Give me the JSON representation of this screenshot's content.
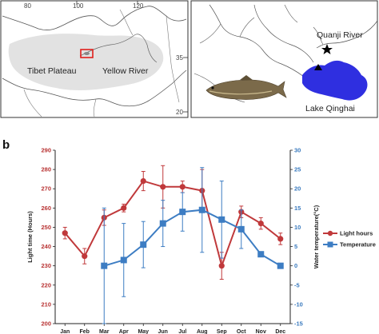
{
  "panels": {
    "a_label": "a",
    "b_label": "b"
  },
  "map_left": {
    "coords": [
      "80",
      "100",
      "120",
      "35",
      "20"
    ],
    "labels": {
      "tibet": "Tibet Plateau",
      "yellow_river": "Yellow River"
    }
  },
  "map_right": {
    "labels": {
      "quanji": "Quanji River",
      "lake": "Lake Qinghai"
    }
  },
  "colors": {
    "light": "#c0393b",
    "temperature": "#3d7dc3",
    "lake": "#2f2fe0"
  },
  "chart_data": {
    "type": "line",
    "categories": [
      "Jan",
      "Feb",
      "Mar",
      "Apr",
      "May",
      "Jun",
      "Jul",
      "Aug",
      "Sep",
      "Oct",
      "Nov",
      "Dec"
    ],
    "xlabel": "",
    "ylabel_left": "Light time (Hours)",
    "ylabel_right": "Water temperature(°C)",
    "ylim_left": [
      200,
      290
    ],
    "ylim_right": [
      -15,
      30
    ],
    "yticks_left": [
      200,
      210,
      220,
      230,
      240,
      250,
      260,
      270,
      280,
      290
    ],
    "yticks_right": [
      -15,
      -10,
      -5,
      0,
      5,
      10,
      15,
      20,
      25,
      30
    ],
    "legend_position": "right",
    "series": [
      {
        "name": "Light hours",
        "axis": "left",
        "marker": "circle",
        "values": [
          247,
          235,
          255,
          260,
          274,
          271,
          271,
          269,
          230,
          258,
          252,
          244
        ],
        "errors": [
          3,
          4,
          4,
          2,
          5,
          11,
          3,
          11,
          7,
          3,
          3,
          3
        ]
      },
      {
        "name": "Temperature",
        "axis": "right",
        "marker": "square",
        "values": [
          null,
          null,
          0,
          1.5,
          5.5,
          11,
          14,
          14.5,
          12,
          9.5,
          3,
          0
        ],
        "errors": [
          null,
          null,
          15,
          9.5,
          6,
          6,
          5,
          11,
          10,
          5,
          null,
          null
        ]
      }
    ]
  }
}
